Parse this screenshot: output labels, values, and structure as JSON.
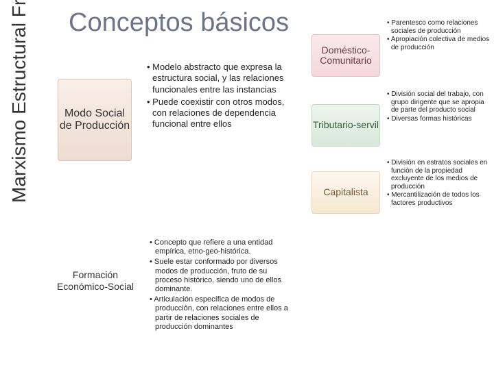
{
  "title": "Conceptos básicos",
  "sidebar": "Marxismo Estructural Francés",
  "modo": {
    "label": "Modo Social de Producción",
    "bullets": [
      "Modelo abstracto que expresa la estructura social, y las relaciones funcionales entre las instancias",
      "Puede coexistir con otros modos, con relaciones de dependencia funcional entre ellos"
    ]
  },
  "formacion": {
    "label": "Formación Económico-Social",
    "bullets": [
      "Concepto que refiere a una entidad empírica, etno-geo-histórica.",
      "Suele estar conformado por diversos modos de producción, fruto de su proceso histórico, siendo uno de ellos dominante.",
      "Articulación específica de modos de producción, con relaciones entre ellos a partir de relaciones sociales de producción dominantes"
    ]
  },
  "right": {
    "domestic": {
      "label": "Doméstico-Comunitario",
      "bullets": [
        "Parentesco como relaciones sociales de producción",
        "Apropiación colectiva de medios de producción"
      ]
    },
    "tributario": {
      "label": "Tributario-servil",
      "bullets": [
        "División social del trabajo, con grupo dirigente que se apropia de parte del producto social",
        "Diversas formas históricas"
      ]
    },
    "capitalista": {
      "label": "Capitalista",
      "bullets": [
        "División en estratos sociales en función de la propiedad excluyente de los medios de producción",
        "Mercantilización de todos los factores productivos"
      ]
    }
  }
}
